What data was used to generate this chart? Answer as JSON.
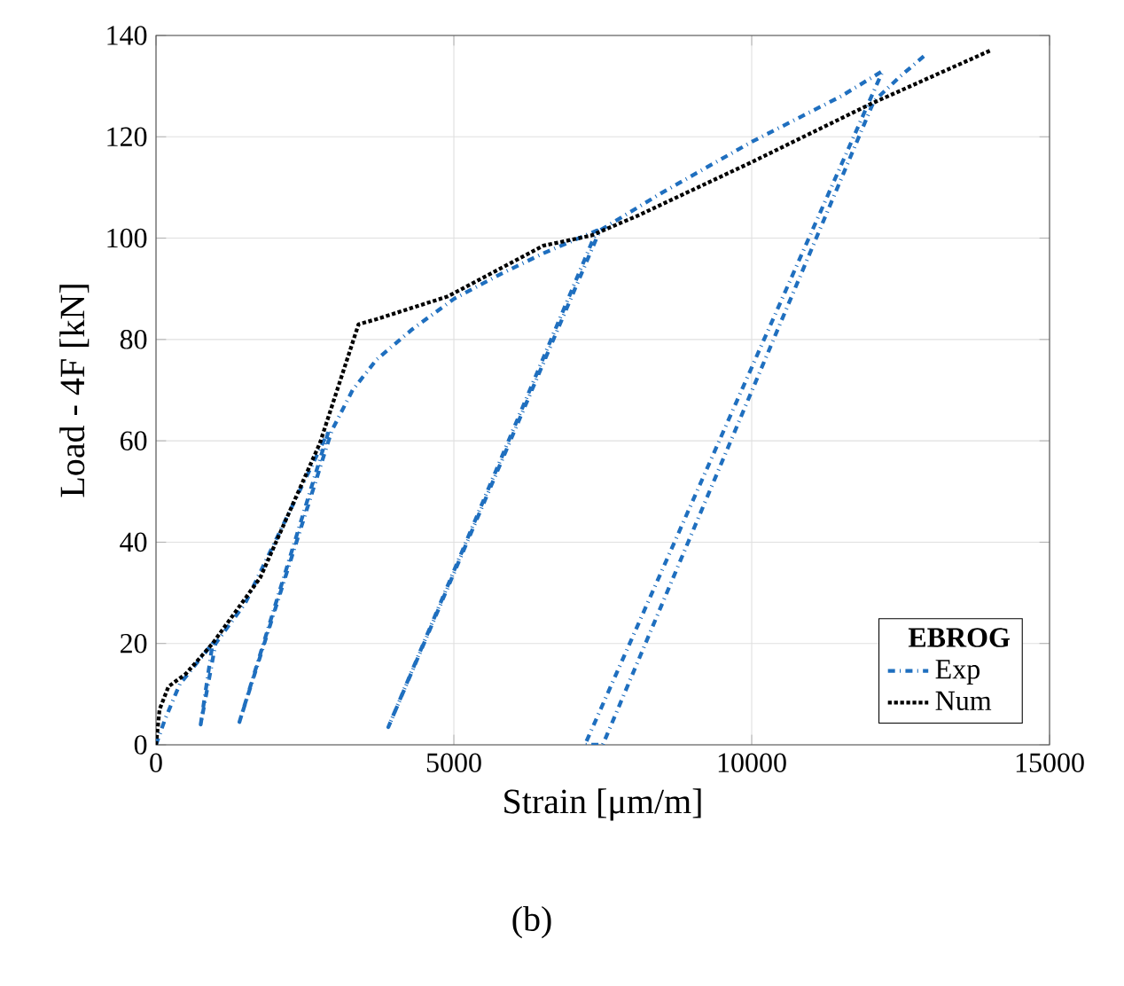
{
  "chart_data": {
    "type": "line",
    "xlabel": "Strain [μm/m]",
    "ylabel": "Load - 4F [kN]",
    "legend_title": "EBROG",
    "xlim": [
      0,
      15000
    ],
    "ylim": [
      0,
      140
    ],
    "xticks": [
      0,
      5000,
      10000,
      15000
    ],
    "yticks": [
      0,
      20,
      40,
      60,
      80,
      100,
      120,
      140
    ],
    "grid": true,
    "legend": "bottom right",
    "series": [
      {
        "name": "Exp",
        "color": "#1f6fbf",
        "line_style": "dashed",
        "x": [
          0,
          150,
          400,
          950,
          750,
          1000,
          1500,
          2200,
          2900,
          1400,
          2950,
          3300,
          3700,
          4300,
          5000,
          5800,
          6500,
          7400,
          3900,
          7450,
          8500,
          10000,
          11500,
          12200,
          7200,
          7500,
          12050,
          12500,
          12900
        ],
        "values": [
          0,
          5,
          12,
          20,
          4,
          20,
          28,
          45,
          62,
          4.5,
          62,
          70,
          76,
          82,
          88,
          93,
          97,
          101.5,
          3.5,
          101.5,
          109,
          119,
          128,
          133,
          0,
          0,
          127,
          132,
          136
        ]
      },
      {
        "name": "Num",
        "color": "#000000",
        "line_style": "dotted",
        "x": [
          0,
          60,
          210,
          500,
          950,
          1750,
          2750,
          3400,
          3700,
          4900,
          6500,
          7300,
          8100,
          10000,
          12000,
          14000
        ],
        "values": [
          0,
          7,
          11.5,
          14,
          20,
          33,
          59.5,
          83,
          84,
          88.5,
          98.5,
          100.5,
          104.5,
          115,
          126.5,
          137
        ]
      }
    ],
    "annotations": [
      "(b)"
    ]
  }
}
